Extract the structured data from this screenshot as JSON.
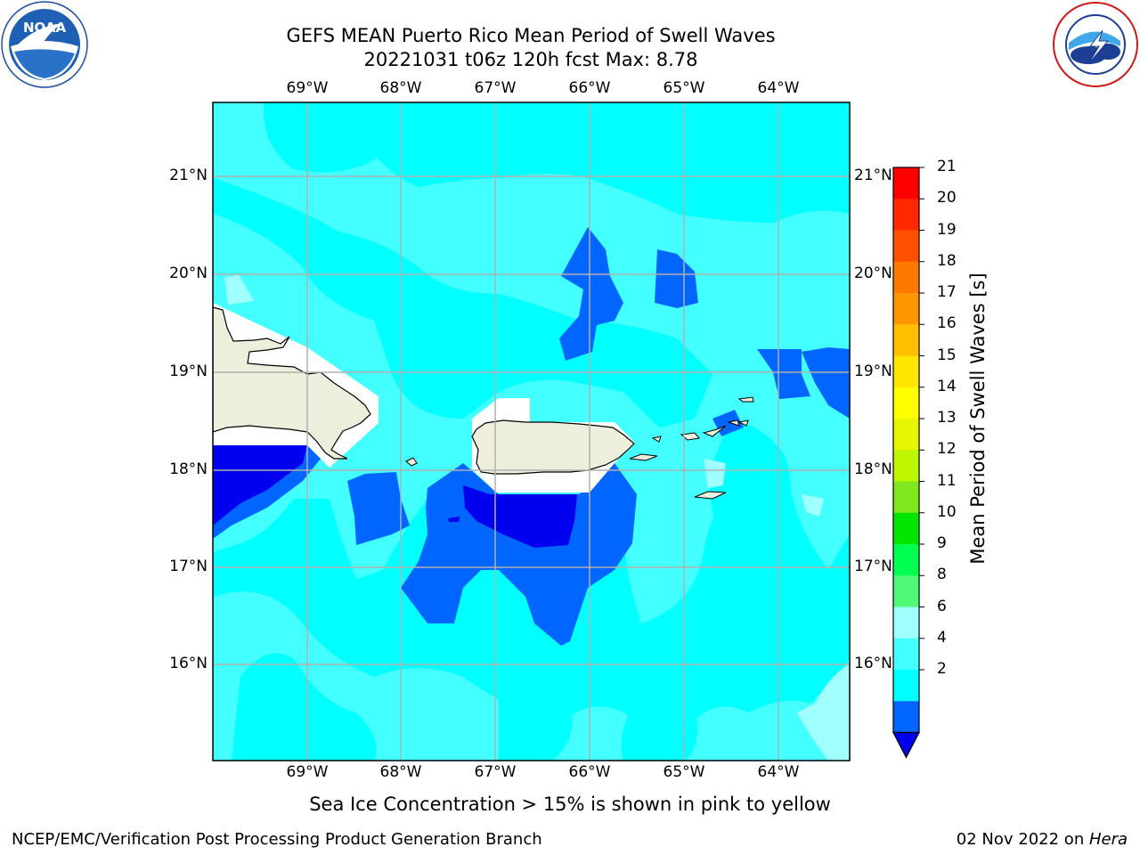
{
  "header": {
    "title_line1": "GEFS MEAN Puerto Rico Mean Period of Swell Waves",
    "title_line2": "20221031 t06z 120h fcst   Max: 8.78"
  },
  "logos": {
    "left": {
      "name": "noaa-logo",
      "text": "NOAA",
      "ring_text": "NATIONAL OCEANIC AND ATMOSPHERIC ADMINISTRATION · U.S. DEPARTMENT OF COMMERCE"
    },
    "right": {
      "name": "nws-logo",
      "ring_text": "NATIONAL WEATHER SERVICE"
    }
  },
  "map": {
    "lon_labels": [
      "69°W",
      "68°W",
      "67°W",
      "66°W",
      "65°W",
      "64°W"
    ],
    "lat_labels": [
      "21°N",
      "20°N",
      "19°N",
      "18°N",
      "17°N",
      "16°N"
    ],
    "colors": {
      "c2_4": "#0066ff",
      "c4_6": "#00ffff",
      "c6_8": "#44ffff",
      "c8_9": "#a0ffff",
      "below_2": "#0000ee",
      "land": "#eeeedc",
      "grid": "#b0b0b0"
    }
  },
  "colorbar": {
    "title": "Mean Period of Swell Waves [s]",
    "ticks": [
      "21",
      "20",
      "19",
      "18",
      "17",
      "16",
      "15",
      "14",
      "13",
      "12",
      "11",
      "10",
      "9",
      "8",
      "6",
      "4",
      "2"
    ],
    "colors": [
      "#ff0000",
      "#ff2800",
      "#ff5000",
      "#ff7800",
      "#ff9600",
      "#ffbe00",
      "#ffe600",
      "#ffff00",
      "#e6f500",
      "#bef500",
      "#80e61e",
      "#00e600",
      "#00ff50",
      "#50fa78",
      "#a0ffff",
      "#44ffff",
      "#00ffff",
      "#0066ff"
    ],
    "extend_color": "#0000ee"
  },
  "note": "Sea Ice Concentration > 15% is shown in pink to yellow",
  "footer": {
    "left": "NCEP/EMC/Verification Post Processing Product Generation Branch",
    "right_date": "02 Nov 2022 on ",
    "right_host": "Hera"
  }
}
